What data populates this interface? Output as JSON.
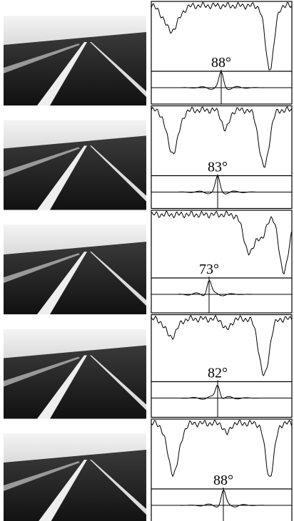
{
  "figure": {
    "panels": [
      {
        "angle": "88°"
      },
      {
        "angle": "83°"
      },
      {
        "angle": "73°"
      },
      {
        "angle": "82°"
      },
      {
        "angle": "88°"
      }
    ]
  }
}
